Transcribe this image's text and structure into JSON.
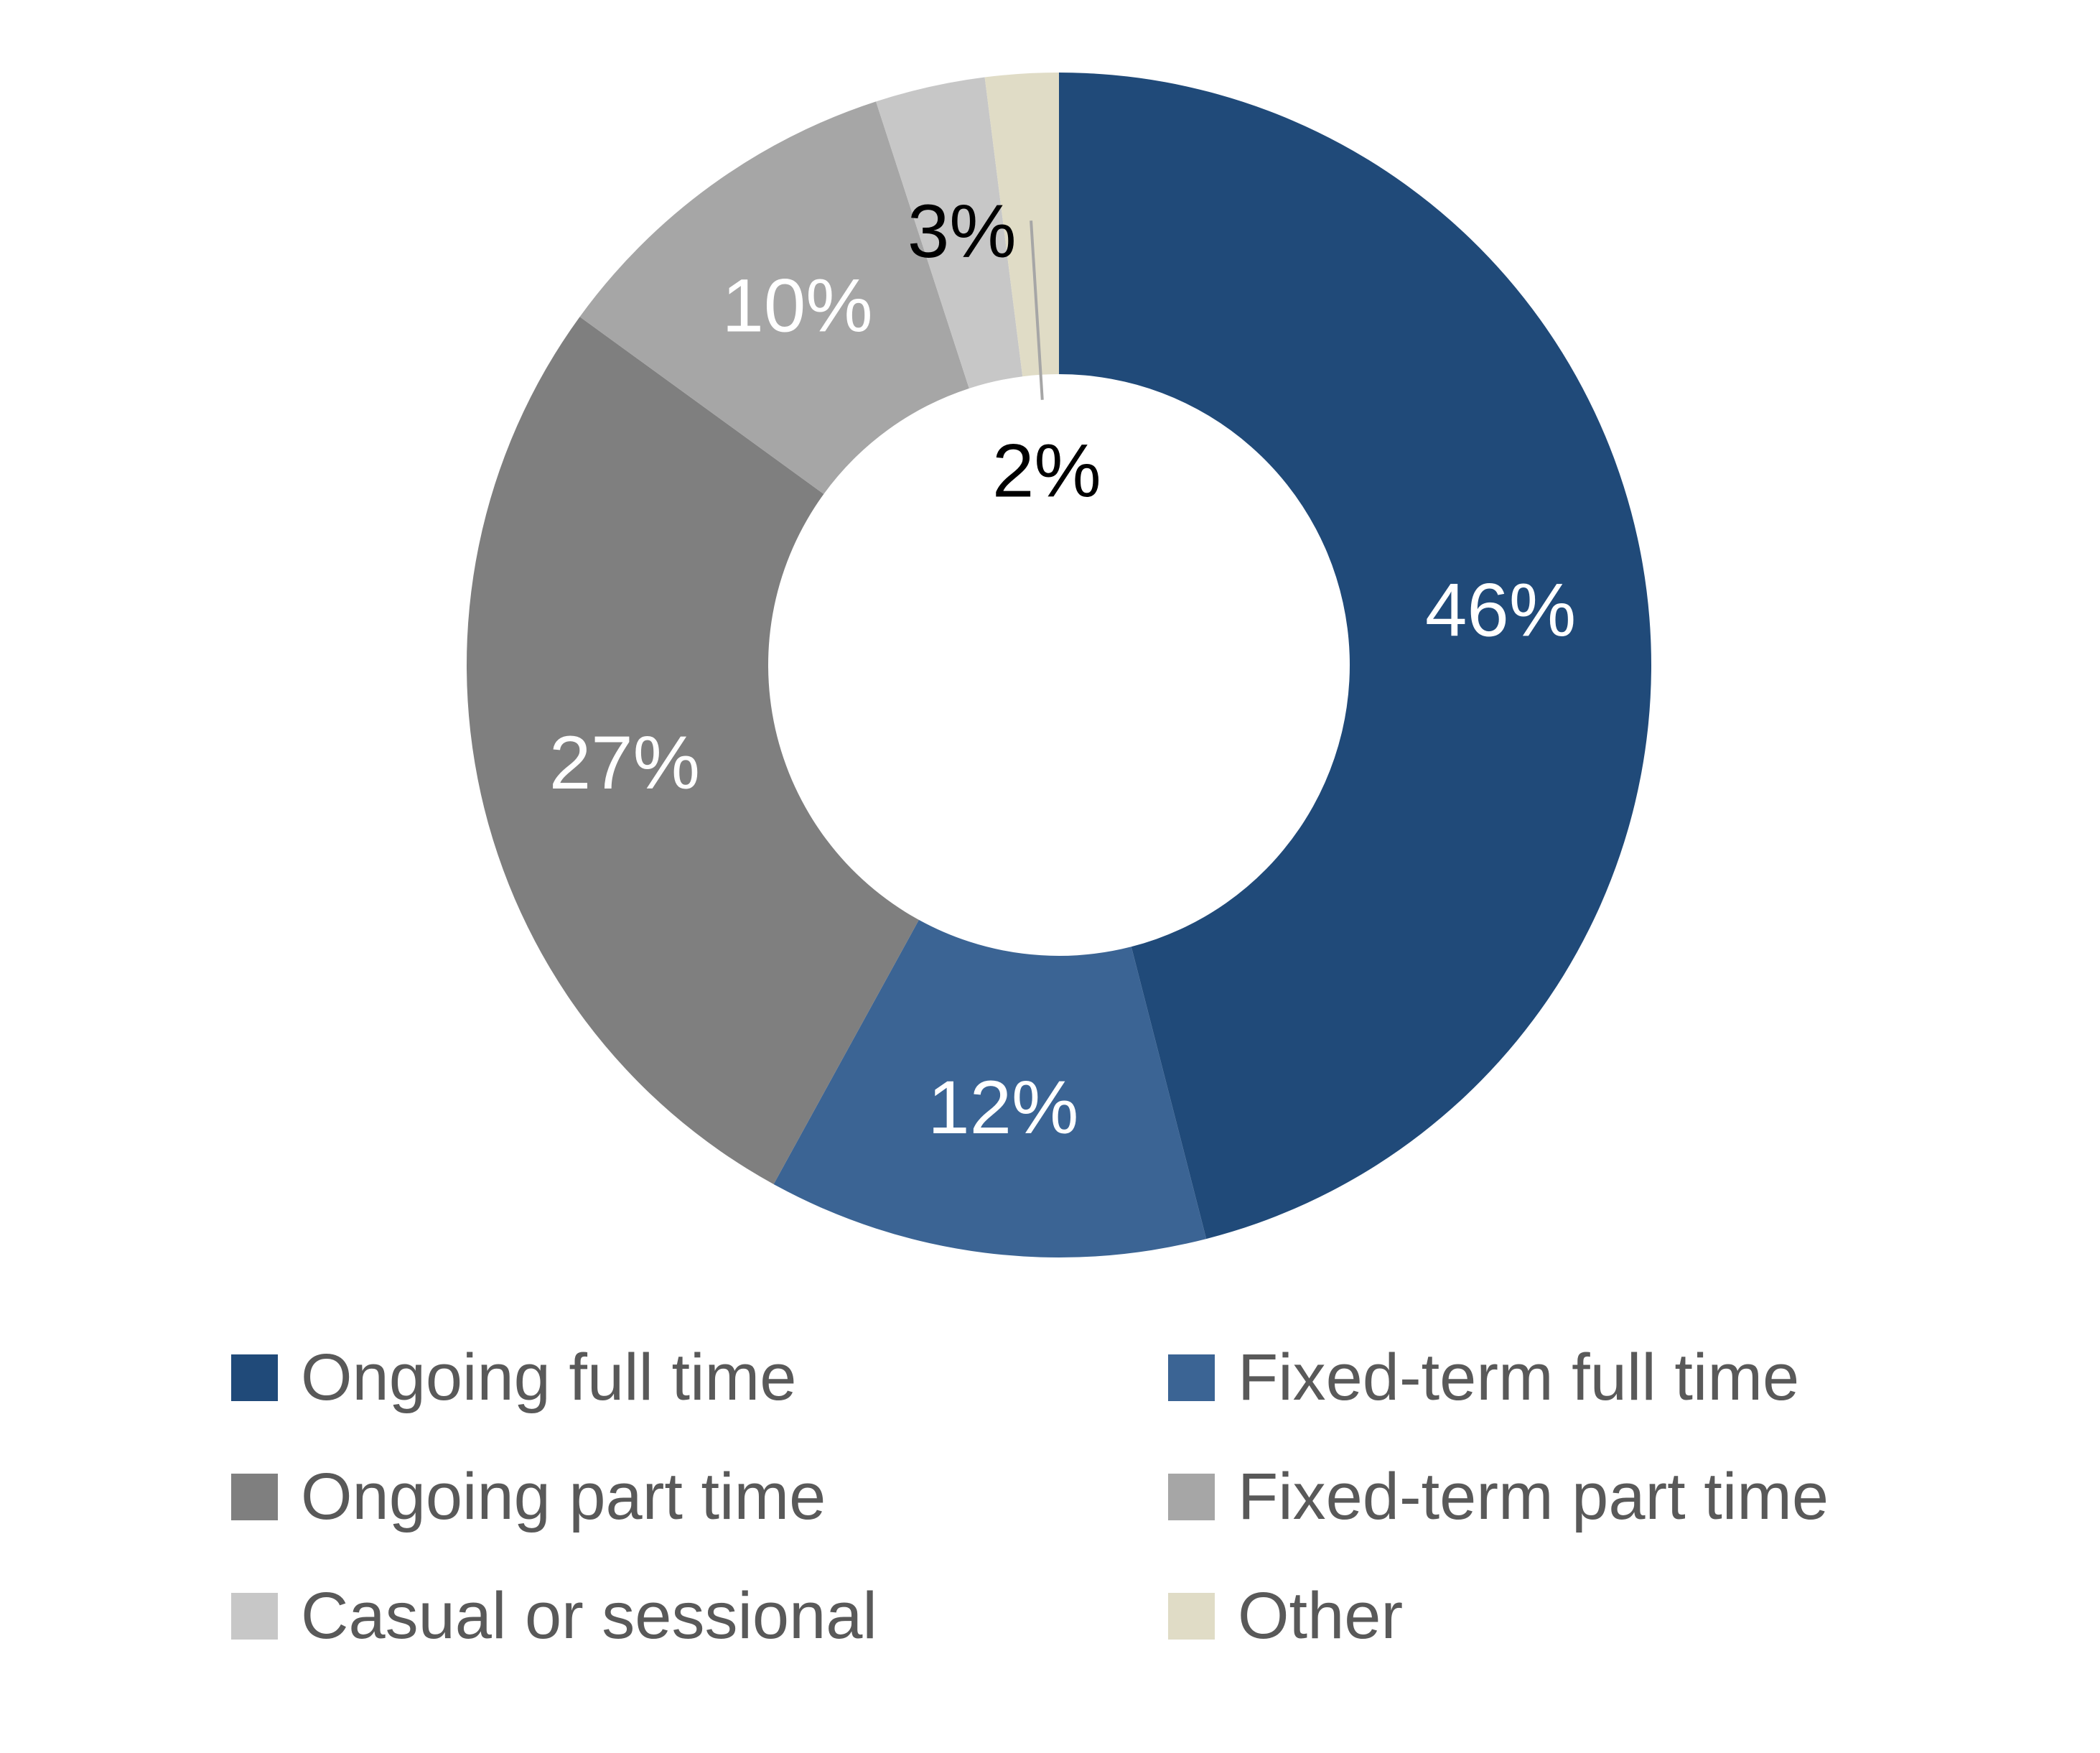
{
  "background_color": "#FFFFFF",
  "chart_data": {
    "type": "pie",
    "subtype": "donut",
    "title": "",
    "hole_ratio": 0.49,
    "start_angle_deg": 0,
    "direction": "clockwise",
    "legend_position": "bottom",
    "legend_columns": 2,
    "legend_text_color": "#595959",
    "leader_line_color": "#A6A6A6",
    "categories": [
      "Ongoing full time",
      "Fixed-term full time",
      "Ongoing part time",
      "Fixed-term part time",
      "Casual or sessional",
      "Other"
    ],
    "values": [
      46,
      12,
      27,
      10,
      3,
      2
    ],
    "slices": [
      {
        "label": "Ongoing full time",
        "value": 46,
        "display": "46%",
        "color": "#204A79",
        "label_color": "#FFFFFF",
        "label_inside_hole": false,
        "leader_line": false
      },
      {
        "label": "Fixed-term full time",
        "value": 12,
        "display": "12%",
        "color": "#3B6494",
        "label_color": "#FFFFFF",
        "label_inside_hole": false,
        "leader_line": false
      },
      {
        "label": "Ongoing part time",
        "value": 27,
        "display": "27%",
        "color": "#7F7F7F",
        "label_color": "#FFFFFF",
        "label_inside_hole": false,
        "leader_line": false
      },
      {
        "label": "Fixed-term part time",
        "value": 10,
        "display": "10%",
        "color": "#A6A6A6",
        "label_color": "#FFFFFF",
        "label_inside_hole": false,
        "leader_line": false
      },
      {
        "label": "Casual or sessional",
        "value": 3,
        "display": "3%",
        "color": "#C7C7C7",
        "label_color": "#000000",
        "label_inside_hole": false,
        "leader_line": false
      },
      {
        "label": "Other",
        "value": 2,
        "display": "2%",
        "color": "#E0DCC6",
        "label_color": "#000000",
        "label_inside_hole": true,
        "leader_line": true
      }
    ]
  }
}
